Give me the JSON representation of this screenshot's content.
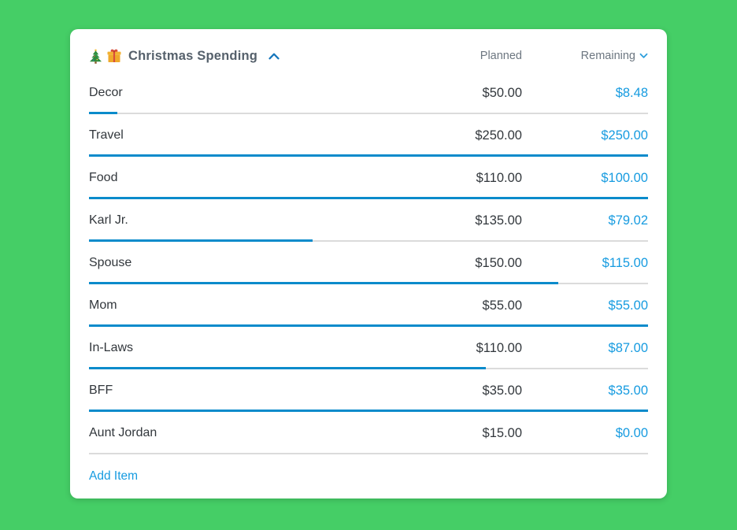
{
  "page": {
    "background_color": "#45CE66"
  },
  "card": {
    "colors": {
      "bar_fill": "#0A8BCB",
      "bar_track": "#DBDBDB",
      "remaining_text": "#169BE0",
      "title_text": "#55606B"
    },
    "header": {
      "icons": [
        {
          "name": "christmas-tree-icon",
          "glyph": "🎄"
        },
        {
          "name": "gift-icon",
          "glyph": "🎁"
        }
      ],
      "title": "Christmas Spending",
      "collapse_icon": "chevron-up-icon",
      "planned_label": "Planned",
      "remaining_label": "Remaining",
      "remaining_sort_icon": "chevron-down-icon"
    },
    "rows": [
      {
        "name": "Decor",
        "planned": "$50.00",
        "remaining": "$8.48",
        "progress_pct": 5
      },
      {
        "name": "Travel",
        "planned": "$250.00",
        "remaining": "$250.00",
        "progress_pct": 100
      },
      {
        "name": "Food",
        "planned": "$110.00",
        "remaining": "$100.00",
        "progress_pct": 100
      },
      {
        "name": "Karl Jr.",
        "planned": "$135.00",
        "remaining": "$79.02",
        "progress_pct": 40
      },
      {
        "name": "Spouse",
        "planned": "$150.00",
        "remaining": "$115.00",
        "progress_pct": 84
      },
      {
        "name": "Mom",
        "planned": "$55.00",
        "remaining": "$55.00",
        "progress_pct": 100
      },
      {
        "name": "In-Laws",
        "planned": "$110.00",
        "remaining": "$87.00",
        "progress_pct": 71
      },
      {
        "name": "BFF",
        "planned": "$35.00",
        "remaining": "$35.00",
        "progress_pct": 100
      },
      {
        "name": "Aunt Jordan",
        "planned": "$15.00",
        "remaining": "$0.00",
        "progress_pct": 0
      }
    ],
    "footer": {
      "add_item_label": "Add Item"
    }
  }
}
